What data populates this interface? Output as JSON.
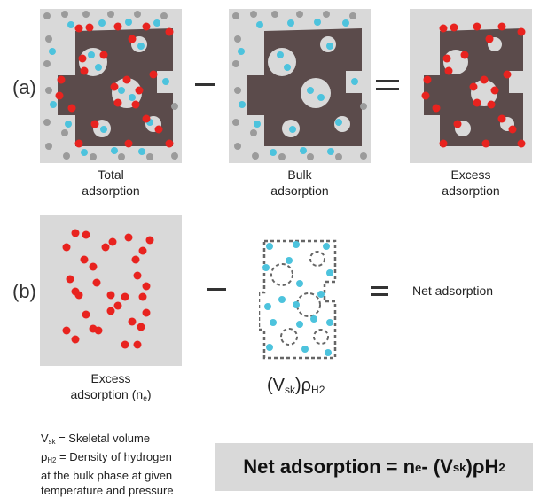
{
  "row_a": {
    "label": "(a)",
    "total_caption": "Total\nadsorption",
    "bulk_caption": "Bulk\nadsorption",
    "excess_caption": "Excess\nadsorption"
  },
  "row_b": {
    "label": "(b)",
    "excess_caption": "Excess\nadsorption (ne)",
    "net_label": "Net adsorption",
    "vsk_rho": {
      "open": "(V",
      "sk": "sk",
      "close": ")ρ",
      "h2": "H2"
    }
  },
  "legend": {
    "vsk_line": {
      "v": "V",
      "sub": "sk",
      "rest": " = Skeletal volume"
    },
    "rho_line": {
      "rho": "ρ",
      "sub": "H2",
      "rest": " = Density of hydrogen"
    },
    "rho_line2": "at the bulk phase at given",
    "rho_line3": "temperature and pressure"
  },
  "formula": {
    "prefix": "Net adsorption = n",
    "ne_sub": "e",
    "middle": " - (V",
    "vsk_sub": "sk",
    "suffix": ")ρH",
    "h2_sub": "2"
  },
  "colors": {
    "panel_bg": "#d9d9d9",
    "solid": "#5b4b4b",
    "red": "#e8231f",
    "cyan": "#4dc3dd",
    "gray": "#9b9b9b",
    "dash": "#666666"
  }
}
